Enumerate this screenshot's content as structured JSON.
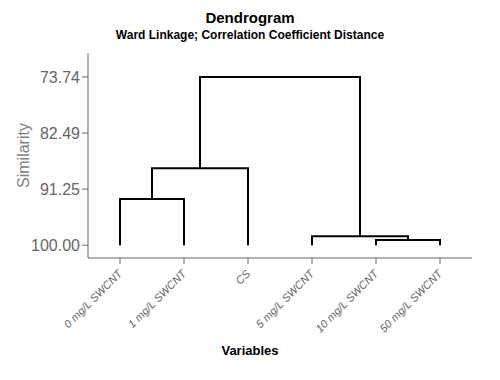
{
  "chart_data": {
    "type": "dendrogram",
    "title": "Dendrogram",
    "subtitle": "Ward Linkage; Correlation Coefficient Distance",
    "xlabel": "Variables",
    "ylabel": "Similarity",
    "categories": [
      "0 mg/L SWCNT",
      "1 mg/L SWCNT",
      "CS",
      "5 mg/L SWCNT",
      "10 mg/L SWCNT",
      "50 mg/L SWCNT"
    ],
    "leaf_value": 100.0,
    "tree": {
      "value": 73.74,
      "children": [
        {
          "value": 88.0,
          "children": [
            {
              "value": 92.8,
              "children": [
                "0 mg/L SWCNT",
                "1 mg/L SWCNT"
              ]
            },
            "CS"
          ]
        },
        {
          "value": 98.6,
          "children": [
            "5 mg/L SWCNT",
            {
              "value": 99.2,
              "children": [
                "10 mg/L SWCNT",
                "50 mg/L SWCNT"
              ]
            }
          ]
        }
      ]
    },
    "ylim": [
      102.0,
      70.0
    ],
    "yticks": [
      73.74,
      82.49,
      91.25,
      {
        "value": 100.0,
        "label": "100.00"
      }
    ],
    "color": "#000000",
    "grid": false
  }
}
